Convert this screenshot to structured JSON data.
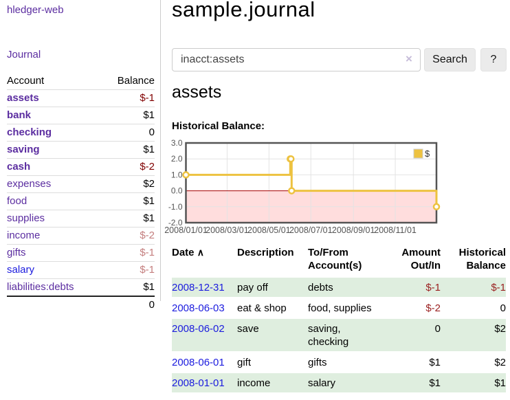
{
  "app": {
    "brand": "hledger-web",
    "nav": {
      "journal": "Journal"
    }
  },
  "sidebar": {
    "header": {
      "account": "Account",
      "balance": "Balance"
    },
    "accounts": [
      {
        "name": "assets",
        "balance": "$-1"
      },
      {
        "name": "bank",
        "balance": "$1"
      },
      {
        "name": "checking",
        "balance": "0"
      },
      {
        "name": "saving",
        "balance": "$1"
      },
      {
        "name": "cash",
        "balance": "$-2"
      },
      {
        "name": "expenses",
        "balance": "$2"
      },
      {
        "name": "food",
        "balance": "$1"
      },
      {
        "name": "supplies",
        "balance": "$1"
      },
      {
        "name": "income",
        "balance": "$-2"
      },
      {
        "name": "gifts",
        "balance": "$-1"
      },
      {
        "name": "salary",
        "balance": "$-1"
      },
      {
        "name": "liabilities:debts",
        "balance": "$1"
      }
    ],
    "total": "0"
  },
  "main": {
    "title": "sample.journal",
    "search": {
      "value": "inacct:assets",
      "clear_icon": "×",
      "button_label": "Search",
      "help_label": "?"
    },
    "account_heading": "assets",
    "chart_label": "Historical Balance:"
  },
  "chart_data": {
    "type": "line",
    "step": true,
    "title": "Historical Balance",
    "series": [
      {
        "name": "$",
        "color": "#edc240",
        "points": [
          [
            "2008-01-01",
            1
          ],
          [
            "2008-06-01",
            2
          ],
          [
            "2008-06-02",
            2
          ],
          [
            "2008-06-03",
            0
          ],
          [
            "2008-12-31",
            -1
          ]
        ]
      }
    ],
    "xlim": [
      "2008-01-01",
      "2008-12-31"
    ],
    "ylim": [
      -2,
      3
    ],
    "y_ticks": [
      {
        "v": 3,
        "label": "3.0"
      },
      {
        "v": 2,
        "label": "2.0"
      },
      {
        "v": 1,
        "label": "1.0"
      },
      {
        "v": 0,
        "label": "0.0"
      },
      {
        "v": -1,
        "label": "-1.0"
      },
      {
        "v": -2,
        "label": "-2.0"
      }
    ],
    "x_ticks": [
      {
        "d": "2008-01-01",
        "label": "2008/01/01"
      },
      {
        "d": "2008-03-01",
        "label": "2008/03/01"
      },
      {
        "d": "2008-05-01",
        "label": "2008/05/01"
      },
      {
        "d": "2008-07-01",
        "label": "2008/07/01"
      },
      {
        "d": "2008-09-01",
        "label": "2008/09/01"
      },
      {
        "d": "2008-11-01",
        "label": "2008/11/01"
      }
    ],
    "legend": {
      "position": "top-right",
      "label": "$"
    },
    "grid": true,
    "colors": {
      "negative_region": "#ffdddd",
      "zero_line": "#a40000",
      "gridline": "#e3e3e3",
      "border": "#545454",
      "tick_text": "#545454"
    }
  },
  "register": {
    "headers": [
      "Date",
      "Description",
      "To/From Account(s)",
      "Amount Out/In",
      "Historical Balance"
    ],
    "sort": {
      "column": "Date",
      "direction": "asc",
      "icon": "∧"
    },
    "rows": [
      {
        "date": "2008-12-31",
        "description": "pay off",
        "accounts": "debts",
        "amount": "$-1",
        "balance": "$-1"
      },
      {
        "date": "2008-06-03",
        "description": "eat & shop",
        "accounts": "food, supplies",
        "amount": "$-2",
        "balance": "0"
      },
      {
        "date": "2008-06-02",
        "description": "save",
        "accounts": "saving, checking",
        "amount": "0",
        "balance": "$2"
      },
      {
        "date": "2008-06-01",
        "description": "gift",
        "accounts": "gifts",
        "amount": "$1",
        "balance": "$2"
      },
      {
        "date": "2008-01-01",
        "description": "income",
        "accounts": "salary",
        "amount": "$1",
        "balance": "$1"
      }
    ]
  }
}
